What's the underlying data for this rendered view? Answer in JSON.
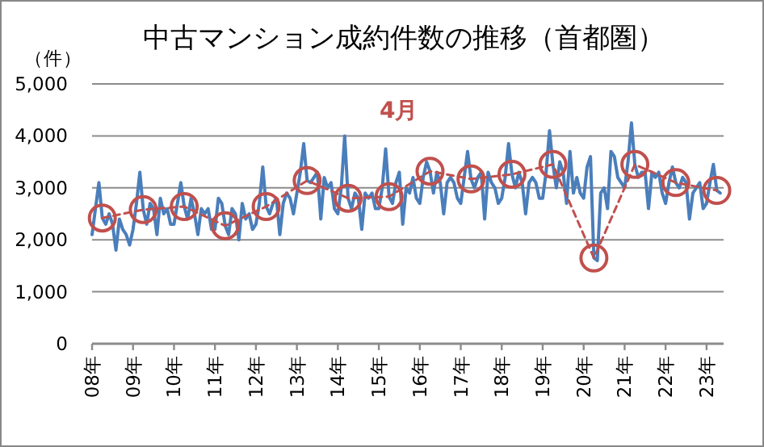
{
  "chart_data": {
    "type": "line",
    "title": "中古マンション成約件数の推移（首都圏）",
    "ylabel": "（件）",
    "xlim": [
      "2008-01",
      "2023-06"
    ],
    "ylim": [
      0,
      5000
    ],
    "yticks": [
      0,
      {
        "value": 1000,
        "label": "1,000"
      },
      {
        "value": 2000,
        "label": "2,000"
      },
      {
        "value": 3000,
        "label": "3,000"
      },
      {
        "value": 4000,
        "label": "4,000"
      },
      {
        "value": 5000,
        "label": "5,000"
      }
    ],
    "xticks": [
      {
        "value": "2008-01",
        "label": "08年"
      },
      {
        "value": "2009-01",
        "label": "09年"
      },
      {
        "value": "2010-01",
        "label": "10年"
      },
      {
        "value": "2011-01",
        "label": "11年"
      },
      {
        "value": "2012-01",
        "label": "12年"
      },
      {
        "value": "2013-01",
        "label": "13年"
      },
      {
        "value": "2014-01",
        "label": "14年"
      },
      {
        "value": "2015-01",
        "label": "15年"
      },
      {
        "value": "2016-01",
        "label": "16年"
      },
      {
        "value": "2017-01",
        "label": "17年"
      },
      {
        "value": "2018-01",
        "label": "18年"
      },
      {
        "value": "2019-01",
        "label": "19年"
      },
      {
        "value": "2020-01",
        "label": "20年"
      },
      {
        "value": "2021-01",
        "label": "21年"
      },
      {
        "value": "2022-01",
        "label": "22年"
      },
      {
        "value": "2023-01",
        "label": "23年"
      }
    ],
    "grid": "y",
    "series": [
      {
        "color": "#4a7ebb",
        "marker": "none",
        "line_style": "solid",
        "x": [
          "2008-01",
          "2008-02",
          "2008-03",
          "2008-04",
          "2008-05",
          "2008-06",
          "2008-07",
          "2008-08",
          "2008-09",
          "2008-10",
          "2008-11",
          "2008-12",
          "2009-01",
          "2009-02",
          "2009-03",
          "2009-04",
          "2009-05",
          "2009-06",
          "2009-07",
          "2009-08",
          "2009-09",
          "2009-10",
          "2009-11",
          "2009-12",
          "2010-01",
          "2010-02",
          "2010-03",
          "2010-04",
          "2010-05",
          "2010-06",
          "2010-07",
          "2010-08",
          "2010-09",
          "2010-10",
          "2010-11",
          "2010-12",
          "2011-01",
          "2011-02",
          "2011-03",
          "2011-04",
          "2011-05",
          "2011-06",
          "2011-07",
          "2011-08",
          "2011-09",
          "2011-10",
          "2011-11",
          "2011-12",
          "2012-01",
          "2012-02",
          "2012-03",
          "2012-04",
          "2012-05",
          "2012-06",
          "2012-07",
          "2012-08",
          "2012-09",
          "2012-10",
          "2012-11",
          "2012-12",
          "2013-01",
          "2013-02",
          "2013-03",
          "2013-04",
          "2013-05",
          "2013-06",
          "2013-07",
          "2013-08",
          "2013-09",
          "2013-10",
          "2013-11",
          "2013-12",
          "2014-01",
          "2014-02",
          "2014-03",
          "2014-04",
          "2014-05",
          "2014-06",
          "2014-07",
          "2014-08",
          "2014-09",
          "2014-10",
          "2014-11",
          "2014-12",
          "2015-01",
          "2015-02",
          "2015-03",
          "2015-04",
          "2015-05",
          "2015-06",
          "2015-07",
          "2015-08",
          "2015-09",
          "2015-10",
          "2015-11",
          "2015-12",
          "2016-01",
          "2016-02",
          "2016-03",
          "2016-04",
          "2016-05",
          "2016-06",
          "2016-07",
          "2016-08",
          "2016-09",
          "2016-10",
          "2016-11",
          "2016-12",
          "2017-01",
          "2017-02",
          "2017-03",
          "2017-04",
          "2017-05",
          "2017-06",
          "2017-07",
          "2017-08",
          "2017-09",
          "2017-10",
          "2017-11",
          "2017-12",
          "2018-01",
          "2018-02",
          "2018-03",
          "2018-04",
          "2018-05",
          "2018-06",
          "2018-07",
          "2018-08",
          "2018-09",
          "2018-10",
          "2018-11",
          "2018-12",
          "2019-01",
          "2019-02",
          "2019-03",
          "2019-04",
          "2019-05",
          "2019-06",
          "2019-07",
          "2019-08",
          "2019-09",
          "2019-10",
          "2019-11",
          "2019-12",
          "2020-01",
          "2020-02",
          "2020-03",
          "2020-04",
          "2020-05",
          "2020-06",
          "2020-07",
          "2020-08",
          "2020-09",
          "2020-10",
          "2020-11",
          "2020-12",
          "2021-01",
          "2021-02",
          "2021-03",
          "2021-04",
          "2021-05",
          "2021-06",
          "2021-07",
          "2021-08",
          "2021-09",
          "2021-10",
          "2021-11",
          "2021-12",
          "2022-01",
          "2022-02",
          "2022-03",
          "2022-04",
          "2022-05",
          "2022-06",
          "2022-07",
          "2022-08",
          "2022-09",
          "2022-10",
          "2022-11",
          "2022-12",
          "2023-01",
          "2023-02",
          "2023-03",
          "2023-04",
          "2023-05"
        ],
        "values": [
          2100,
          2600,
          3100,
          2420,
          2300,
          2500,
          2300,
          1800,
          2400,
          2200,
          2100,
          1900,
          2200,
          2700,
          3300,
          2580,
          2300,
          2700,
          2600,
          2100,
          2800,
          2500,
          2600,
          2300,
          2300,
          2700,
          3100,
          2640,
          2400,
          2800,
          2500,
          2100,
          2600,
          2500,
          2600,
          2200,
          2200,
          2800,
          2700,
          2270,
          2100,
          2600,
          2500,
          2000,
          2700,
          2400,
          2500,
          2200,
          2300,
          2700,
          3400,
          2640,
          2500,
          2700,
          2800,
          2100,
          2700,
          2900,
          2800,
          2500,
          2900,
          3300,
          3850,
          3140,
          3100,
          3200,
          3300,
          2400,
          3200,
          3000,
          3100,
          2600,
          2500,
          3000,
          4000,
          2800,
          2600,
          2900,
          2800,
          2200,
          2900,
          2800,
          2900,
          2600,
          2600,
          3000,
          3750,
          2830,
          2700,
          3100,
          3300,
          2300,
          3000,
          2900,
          3200,
          2800,
          2700,
          3200,
          3500,
          3320,
          2900,
          3300,
          3100,
          2500,
          3100,
          3200,
          3100,
          2800,
          2700,
          3200,
          3700,
          3170,
          3000,
          3200,
          3300,
          2400,
          3300,
          3100,
          3000,
          2700,
          2800,
          3200,
          3850,
          3260,
          3000,
          3300,
          3100,
          2500,
          3100,
          3200,
          3100,
          2800,
          2800,
          3300,
          4100,
          3450,
          3000,
          3500,
          3300,
          2700,
          3700,
          2900,
          3200,
          2900,
          2800,
          3400,
          3600,
          1650,
          1600,
          2900,
          3000,
          2600,
          3700,
          3600,
          3200,
          3100,
          3000,
          3500,
          4250,
          3450,
          3200,
          3300,
          3300,
          2600,
          3300,
          3200,
          3300,
          2900,
          2700,
          3100,
          3400,
          3100,
          3000,
          3200,
          3100,
          2400,
          2900,
          3000,
          3100,
          2600,
          2700,
          3100,
          3450,
          2950,
          2900
        ]
      },
      {
        "name": "4月",
        "color": "#c0504d",
        "marker": "circle",
        "line_style": "dashed",
        "x": [
          "2008-04",
          "2009-04",
          "2010-04",
          "2011-04",
          "2012-04",
          "2013-04",
          "2014-04",
          "2015-04",
          "2016-04",
          "2017-04",
          "2018-04",
          "2019-04",
          "2020-04",
          "2021-04",
          "2022-04",
          "2023-04"
        ],
        "values": [
          2420,
          2580,
          2640,
          2270,
          2640,
          3140,
          2800,
          2830,
          3320,
          3170,
          3260,
          3450,
          1650,
          3450,
          3100,
          2950
        ]
      }
    ]
  }
}
